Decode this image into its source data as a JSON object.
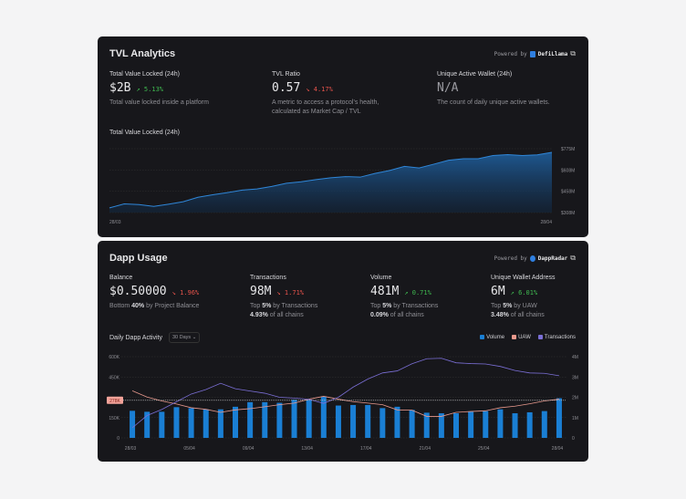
{
  "tvl": {
    "title": "TVL Analytics",
    "powered_by": "Powered by",
    "provider": "DefiLlama",
    "metrics": [
      {
        "label": "Total Value Locked (24h)",
        "value": "$2B",
        "change": "5.13%",
        "direction": "up",
        "desc": "Total value locked inside a platform"
      },
      {
        "label": "TVL Ratio",
        "value": "0.57",
        "change": "4.17%",
        "direction": "down",
        "desc": "A metric to access a protocol's health, calculated as Market Cap / TVL"
      },
      {
        "label": "Unique Active Wallet (24h)",
        "value": "N/A",
        "desc": "The count of daily unique active wallets."
      }
    ],
    "chart_label": "Total Value Locked (24h)"
  },
  "dapp": {
    "title": "Dapp Usage",
    "powered_by": "Powered by",
    "provider": "DappRadar",
    "metrics": [
      {
        "label": "Balance",
        "value": "$0.50000",
        "change": "1.96%",
        "direction": "down",
        "line1_pre": "Bottom ",
        "line1_bold": "40%",
        "line1_post": " by Project Balance"
      },
      {
        "label": "Transactions",
        "value": "98M",
        "change": "1.71%",
        "direction": "down",
        "line1_pre": "Top ",
        "line1_bold": "5%",
        "line1_post": " by Transactions",
        "line2_bold": "4.93%",
        "line2_post": " of all chains"
      },
      {
        "label": "Volume",
        "value": "481M",
        "change": "0.71%",
        "direction": "up",
        "line1_pre": "Top ",
        "line1_bold": "5%",
        "line1_post": " by Transactions",
        "line2_bold": "0.09%",
        "line2_post": " of all chains"
      },
      {
        "label": "Unique Wallet Address",
        "value": "6M",
        "change": "6.01%",
        "direction": "up",
        "line1_pre": "Top ",
        "line1_bold": "5%",
        "line1_post": " by UAW",
        "line2_bold": "3.48%",
        "line2_post": " of all chains"
      }
    ],
    "chart_label": "Daily Dapp Activity",
    "range": "30 Days"
  },
  "colors": {
    "up": "#3fb950",
    "down": "#e5534b",
    "tvl": "#2f86d8",
    "volume": "#1a7fd4",
    "uaw": "#e8998d",
    "transactions": "#7b6fd6"
  },
  "chart_data": [
    {
      "type": "area",
      "title": "Total Value Locked (24h)",
      "x_ticks": [
        "28/03",
        "28/04"
      ],
      "y_ticks": [
        "$775M",
        "$608M",
        "$458M",
        "$308M"
      ],
      "ylim": [
        308,
        775
      ],
      "y_unit": "M USD",
      "grid": true,
      "values": [
        342,
        371,
        366,
        353,
        369,
        387,
        420,
        438,
        454,
        472,
        481,
        499,
        522,
        533,
        549,
        562,
        571,
        567,
        594,
        616,
        646,
        634,
        662,
        691,
        702,
        702,
        725,
        732,
        725,
        730,
        748
      ]
    },
    {
      "type": "bar+line",
      "title": "Daily Dapp Activity",
      "x_ticks": [
        "28/03",
        "05/04",
        "09/04",
        "13/04",
        "17/04",
        "21/04",
        "25/04",
        "28/04"
      ],
      "y_left_ticks": [
        "600K",
        "450K",
        "150K",
        "0"
      ],
      "y_right_ticks": [
        "4M",
        "3M",
        "2M",
        "1M",
        "0"
      ],
      "ylim_left": [
        0,
        600000
      ],
      "ylim_right": [
        0,
        4000000
      ],
      "grid": true,
      "legend": "top-right",
      "reference_line": {
        "value": 278000,
        "label": "278K"
      },
      "series": [
        {
          "name": "Volume",
          "type": "bar",
          "axis": "left",
          "values": [
            200000,
            193000,
            193000,
            227000,
            220000,
            211000,
            211000,
            230000,
            264000,
            264000,
            259000,
            282000,
            282000,
            307000,
            239000,
            243000,
            243000,
            220000,
            230000,
            207000,
            186000,
            182000,
            182000,
            193000,
            198000,
            211000,
            182000,
            189000,
            198000,
            293000
          ]
        },
        {
          "name": "UAW",
          "type": "line",
          "axis": "left",
          "values": [
            348000,
            302000,
            273000,
            250000,
            223000,
            211000,
            189000,
            207000,
            216000,
            230000,
            245000,
            257000,
            286000,
            307000,
            286000,
            268000,
            257000,
            245000,
            207000,
            205000,
            159000,
            159000,
            189000,
            195000,
            200000,
            223000,
            234000,
            252000,
            273000,
            286000
          ]
        },
        {
          "name": "Transactions",
          "type": "line",
          "axis": "right",
          "values": [
            500000,
            1100000,
            1400000,
            1780000,
            2160000,
            2380000,
            2690000,
            2420000,
            2310000,
            2200000,
            2000000,
            1960000,
            1900000,
            1700000,
            2000000,
            2500000,
            2900000,
            3200000,
            3300000,
            3650000,
            3900000,
            3920000,
            3700000,
            3660000,
            3640000,
            3520000,
            3320000,
            3200000,
            3180000,
            3060000
          ]
        }
      ]
    }
  ]
}
